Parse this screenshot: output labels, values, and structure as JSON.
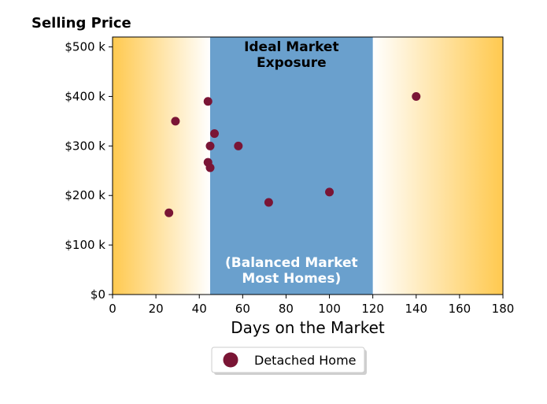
{
  "chart_data": {
    "type": "scatter",
    "ylabel": "Selling Price",
    "xlabel": "Days on the Market",
    "xlim": [
      0,
      180
    ],
    "ylim": [
      0,
      520000
    ],
    "x_ticks": [
      0,
      20,
      40,
      60,
      80,
      100,
      120,
      140,
      160,
      180
    ],
    "x_tick_labels": [
      "0",
      "20",
      "40",
      "60",
      "80",
      "100",
      "120",
      "140",
      "160",
      "180"
    ],
    "y_ticks": [
      0,
      100000,
      200000,
      300000,
      400000,
      500000
    ],
    "y_tick_labels": [
      "$0",
      "$100 k",
      "$200 k",
      "$300 k",
      "$400 k",
      "$500 k"
    ],
    "highlight_band": {
      "x_range": [
        45,
        120
      ],
      "title_lines": [
        "Ideal Market",
        "Exposure"
      ],
      "note_lines": [
        "(Balanced Market",
        "Most Homes)"
      ],
      "color": "#6aa0cd"
    },
    "background_gradient": {
      "edge_color": "#ffc94f",
      "inner_color": "#ffffff"
    },
    "series": [
      {
        "name": "Detached Home",
        "color": "#7a1535",
        "points": [
          {
            "x": 26,
            "y": 165000
          },
          {
            "x": 29,
            "y": 350000
          },
          {
            "x": 44,
            "y": 390000
          },
          {
            "x": 44,
            "y": 267000
          },
          {
            "x": 45,
            "y": 300000
          },
          {
            "x": 45,
            "y": 256000
          },
          {
            "x": 47,
            "y": 325000
          },
          {
            "x": 58,
            "y": 300000
          },
          {
            "x": 72,
            "y": 186000
          },
          {
            "x": 100,
            "y": 207000
          },
          {
            "x": 140,
            "y": 400000
          }
        ]
      }
    ],
    "grid": false,
    "legend": {
      "placement": "bottom-center"
    }
  }
}
